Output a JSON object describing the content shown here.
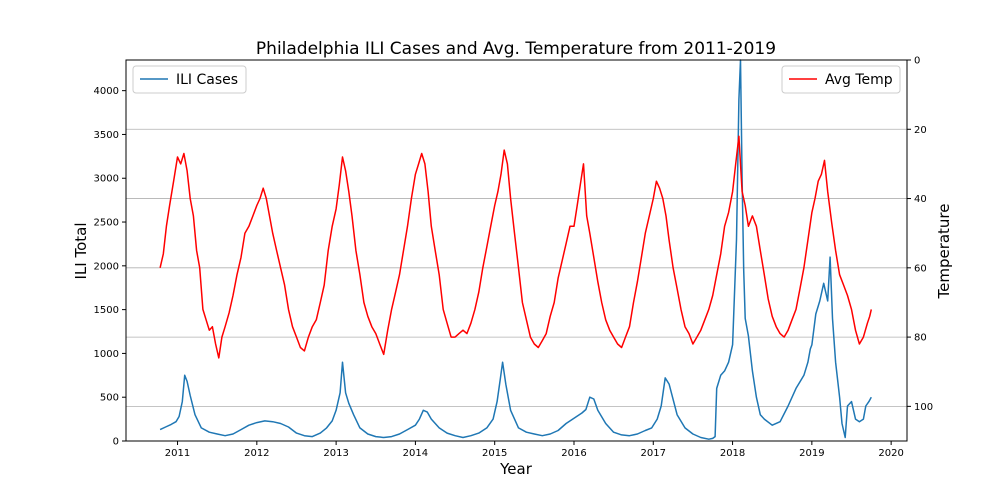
{
  "chart_data": {
    "type": "line",
    "title": "Philadelphia ILI Cases and Avg. Temperature from 2011-2019",
    "xlabel": "Year",
    "ylabel_left": "ILI Total",
    "ylabel_right": "Temperature",
    "x_ticks": [
      "2011",
      "2012",
      "2013",
      "2014",
      "2015",
      "2016",
      "2017",
      "2018",
      "2019",
      "2020"
    ],
    "xlim": [
      2010.35,
      2020.2
    ],
    "y_left_ticks": [
      0,
      500,
      1000,
      1500,
      2000,
      2500,
      3000,
      3500,
      4000
    ],
    "y_left_lim": [
      0,
      4350
    ],
    "y_right_ticks": [
      0,
      20,
      40,
      60,
      80,
      100
    ],
    "y_right_lim": [
      110,
      0
    ],
    "y_right_inverted": true,
    "grid": "horizontal lines at right-axis ticks",
    "legend_left": {
      "label": "ILI Cases",
      "placement": "top-left"
    },
    "legend_right": {
      "label": "Avg Temp",
      "placement": "top-right"
    },
    "series": [
      {
        "name": "ILI Cases",
        "axis": "left",
        "color": "#1f77b4",
        "x": [
          2010.78,
          2010.85,
          2010.92,
          2010.98,
          2011.02,
          2011.06,
          2011.09,
          2011.12,
          2011.16,
          2011.22,
          2011.3,
          2011.4,
          2011.5,
          2011.6,
          2011.7,
          2011.8,
          2011.9,
          2012.0,
          2012.1,
          2012.2,
          2012.3,
          2012.4,
          2012.5,
          2012.6,
          2012.7,
          2012.8,
          2012.88,
          2012.95,
          2013.0,
          2013.05,
          2013.08,
          2013.12,
          2013.16,
          2013.22,
          2013.3,
          2013.4,
          2013.5,
          2013.6,
          2013.7,
          2013.8,
          2013.9,
          2014.0,
          2014.05,
          2014.1,
          2014.15,
          2014.2,
          2014.3,
          2014.4,
          2014.5,
          2014.6,
          2014.7,
          2014.8,
          2014.9,
          2014.98,
          2015.03,
          2015.07,
          2015.1,
          2015.14,
          2015.2,
          2015.3,
          2015.4,
          2015.5,
          2015.6,
          2015.7,
          2015.8,
          2015.9,
          2016.0,
          2016.1,
          2016.15,
          2016.2,
          2016.25,
          2016.3,
          2016.4,
          2016.5,
          2016.6,
          2016.7,
          2016.8,
          2016.9,
          2016.98,
          2017.05,
          2017.1,
          2017.15,
          2017.2,
          2017.3,
          2017.4,
          2017.5,
          2017.6,
          2017.7,
          2017.75,
          2017.78,
          2017.8,
          2017.85,
          2017.9,
          2017.95,
          2018.0,
          2018.05,
          2018.08,
          2018.1,
          2018.12,
          2018.14,
          2018.16,
          2018.2,
          2018.25,
          2018.3,
          2018.35,
          2018.4,
          2018.5,
          2018.6,
          2018.7,
          2018.8,
          2018.9,
          2018.95,
          2018.98,
          2019.0,
          2019.05,
          2019.1,
          2019.15,
          2019.2,
          2019.23,
          2019.26,
          2019.3,
          2019.35,
          2019.38,
          2019.42,
          2019.45,
          2019.5,
          2019.55,
          2019.6,
          2019.65,
          2019.68,
          2019.72,
          2019.75
        ],
        "y": [
          130,
          160,
          190,
          220,
          280,
          450,
          750,
          680,
          520,
          300,
          150,
          100,
          80,
          60,
          80,
          130,
          180,
          210,
          230,
          220,
          200,
          160,
          90,
          60,
          50,
          90,
          150,
          230,
          350,
          550,
          900,
          550,
          430,
          300,
          150,
          80,
          50,
          40,
          50,
          80,
          130,
          180,
          250,
          350,
          330,
          250,
          150,
          90,
          60,
          40,
          60,
          90,
          150,
          250,
          450,
          700,
          900,
          650,
          350,
          150,
          100,
          80,
          60,
          80,
          120,
          200,
          260,
          320,
          360,
          500,
          480,
          350,
          200,
          100,
          70,
          60,
          80,
          120,
          150,
          250,
          400,
          720,
          650,
          300,
          150,
          80,
          40,
          20,
          30,
          50,
          600,
          750,
          800,
          900,
          1100,
          2300,
          3900,
          4350,
          3000,
          1950,
          1400,
          1200,
          800,
          500,
          300,
          250,
          180,
          220,
          400,
          600,
          750,
          900,
          1050,
          1100,
          1450,
          1600,
          1800,
          1600,
          2100,
          1400,
          900,
          500,
          200,
          40,
          400,
          450,
          250,
          220,
          250,
          400,
          450,
          500
        ]
      },
      {
        "name": "Avg Temp",
        "axis": "right",
        "color": "#ff0000",
        "x": [
          2010.78,
          2010.82,
          2010.86,
          2010.9,
          2010.95,
          2011.0,
          2011.04,
          2011.08,
          2011.12,
          2011.16,
          2011.2,
          2011.24,
          2011.28,
          2011.32,
          2011.36,
          2011.4,
          2011.44,
          2011.48,
          2011.52,
          2011.56,
          2011.6,
          2011.65,
          2011.7,
          2011.75,
          2011.8,
          2011.85,
          2011.9,
          2011.95,
          2012.0,
          2012.04,
          2012.08,
          2012.12,
          2012.16,
          2012.2,
          2012.25,
          2012.3,
          2012.35,
          2012.4,
          2012.45,
          2012.5,
          2012.55,
          2012.6,
          2012.65,
          2012.7,
          2012.75,
          2012.8,
          2012.85,
          2012.9,
          2012.95,
          2013.0,
          2013.04,
          2013.08,
          2013.12,
          2013.16,
          2013.2,
          2013.25,
          2013.3,
          2013.35,
          2013.4,
          2013.45,
          2013.5,
          2013.55,
          2013.6,
          2013.65,
          2013.7,
          2013.75,
          2013.8,
          2013.85,
          2013.9,
          2013.95,
          2014.0,
          2014.04,
          2014.08,
          2014.12,
          2014.16,
          2014.2,
          2014.25,
          2014.3,
          2014.35,
          2014.4,
          2014.45,
          2014.5,
          2014.55,
          2014.6,
          2014.65,
          2014.7,
          2014.75,
          2014.8,
          2014.85,
          2014.9,
          2014.95,
          2015.0,
          2015.04,
          2015.08,
          2015.12,
          2015.16,
          2015.2,
          2015.25,
          2015.3,
          2015.35,
          2015.4,
          2015.45,
          2015.5,
          2015.55,
          2015.6,
          2015.65,
          2015.7,
          2015.75,
          2015.8,
          2015.85,
          2015.9,
          2015.95,
          2016.0,
          2016.04,
          2016.08,
          2016.12,
          2016.16,
          2016.2,
          2016.25,
          2016.3,
          2016.35,
          2016.4,
          2016.45,
          2016.5,
          2016.55,
          2016.6,
          2016.65,
          2016.7,
          2016.75,
          2016.8,
          2016.85,
          2016.9,
          2016.95,
          2017.0,
          2017.04,
          2017.08,
          2017.12,
          2017.16,
          2017.2,
          2017.25,
          2017.3,
          2017.35,
          2017.4,
          2017.45,
          2017.5,
          2017.55,
          2017.6,
          2017.65,
          2017.7,
          2017.75,
          2017.8,
          2017.85,
          2017.9,
          2017.95,
          2018.0,
          2018.04,
          2018.08,
          2018.12,
          2018.16,
          2018.2,
          2018.25,
          2018.3,
          2018.35,
          2018.4,
          2018.45,
          2018.5,
          2018.55,
          2018.6,
          2018.65,
          2018.7,
          2018.75,
          2018.8,
          2018.85,
          2018.9,
          2018.95,
          2019.0,
          2019.04,
          2019.08,
          2019.12,
          2019.16,
          2019.2,
          2019.25,
          2019.3,
          2019.35,
          2019.4,
          2019.45,
          2019.5,
          2019.55,
          2019.6,
          2019.65,
          2019.7,
          2019.73,
          2019.75
        ],
        "y": [
          60,
          56,
          48,
          42,
          35,
          28,
          30,
          27,
          32,
          40,
          45,
          55,
          60,
          72,
          75,
          78,
          77,
          82,
          86,
          80,
          77,
          73,
          68,
          62,
          57,
          50,
          48,
          45,
          42,
          40,
          37,
          40,
          45,
          50,
          55,
          60,
          65,
          72,
          77,
          80,
          83,
          84,
          80,
          77,
          75,
          70,
          65,
          55,
          48,
          43,
          36,
          28,
          32,
          38,
          45,
          55,
          62,
          70,
          74,
          77,
          79,
          82,
          85,
          78,
          72,
          67,
          62,
          55,
          48,
          40,
          33,
          30,
          27,
          30,
          38,
          48,
          55,
          62,
          72,
          76,
          80,
          80,
          79,
          78,
          79,
          76,
          72,
          67,
          60,
          54,
          48,
          42,
          38,
          33,
          26,
          30,
          40,
          50,
          60,
          70,
          75,
          80,
          82,
          83,
          81,
          79,
          74,
          70,
          63,
          58,
          53,
          48,
          48,
          42,
          36,
          30,
          45,
          50,
          57,
          64,
          70,
          75,
          78,
          80,
          82,
          83,
          80,
          77,
          70,
          64,
          57,
          50,
          45,
          40,
          35,
          37,
          40,
          45,
          52,
          60,
          66,
          72,
          77,
          79,
          82,
          80,
          78,
          75,
          72,
          68,
          62,
          56,
          48,
          44,
          38,
          30,
          22,
          38,
          42,
          48,
          45,
          48,
          55,
          62,
          69,
          74,
          77,
          79,
          80,
          78,
          75,
          72,
          66,
          60,
          52,
          44,
          40,
          35,
          33,
          29,
          38,
          47,
          55,
          62,
          65,
          68,
          72,
          78,
          82,
          80,
          76,
          74,
          72
        ]
      }
    ]
  }
}
